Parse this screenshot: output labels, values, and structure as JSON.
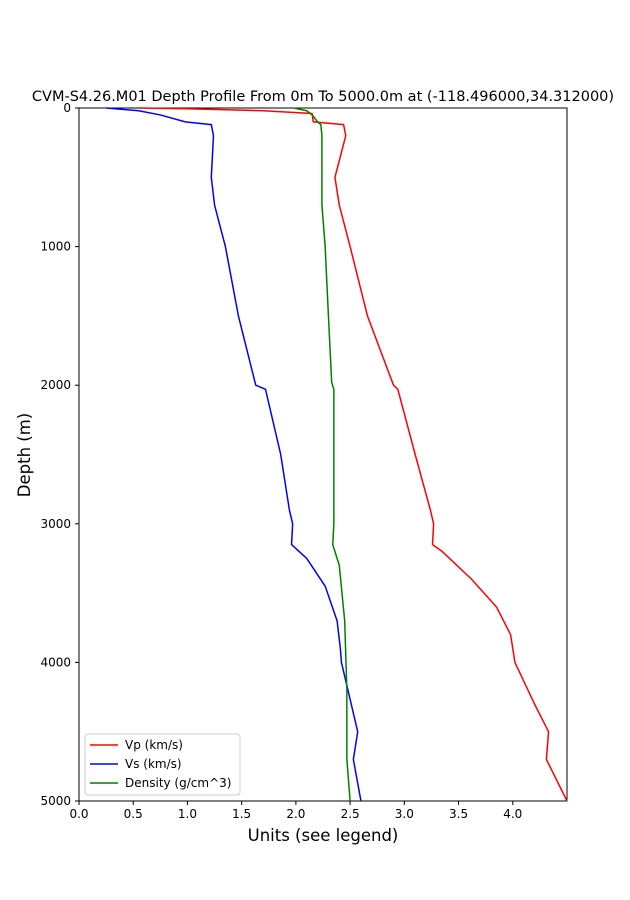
{
  "chart_data": {
    "type": "line",
    "title": "CVM-S4.26.M01 Depth Profile From 0m To 5000.0m at (-118.496000,34.312000)",
    "xlabel": "Units (see legend)",
    "ylabel": "Depth (m)",
    "xlim": [
      0.0,
      4.5
    ],
    "ylim": [
      0,
      5000
    ],
    "y_inverted": true,
    "grid": false,
    "legend_position": "lower-left",
    "x_ticks": [
      0.0,
      0.5,
      1.0,
      1.5,
      2.0,
      2.5,
      3.0,
      3.5,
      4.0
    ],
    "x_tick_labels": [
      "0.0",
      "0.5",
      "1.0",
      "1.5",
      "2.0",
      "2.5",
      "3.0",
      "3.5",
      "4.0"
    ],
    "y_ticks": [
      0,
      1000,
      2000,
      3000,
      4000,
      5000
    ],
    "y_tick_labels": [
      "0",
      "1000",
      "2000",
      "3000",
      "4000",
      "5000"
    ],
    "series": [
      {
        "name": "Vp (km/s)",
        "color": "#ff0000",
        "points": [
          [
            0.55,
            0
          ],
          [
            1.0,
            5
          ],
          [
            1.7,
            20
          ],
          [
            2.15,
            40
          ],
          [
            2.16,
            100
          ],
          [
            2.44,
            120
          ],
          [
            2.46,
            200
          ],
          [
            2.36,
            500
          ],
          [
            2.4,
            700
          ],
          [
            2.5,
            1000
          ],
          [
            2.66,
            1500
          ],
          [
            2.9,
            2000
          ],
          [
            2.94,
            2030
          ],
          [
            3.1,
            2500
          ],
          [
            3.24,
            2900
          ],
          [
            3.27,
            3000
          ],
          [
            3.26,
            3150
          ],
          [
            3.35,
            3200
          ],
          [
            3.62,
            3400
          ],
          [
            3.85,
            3600
          ],
          [
            3.98,
            3800
          ],
          [
            4.02,
            4000
          ],
          [
            4.2,
            4300
          ],
          [
            4.33,
            4500
          ],
          [
            4.31,
            4700
          ],
          [
            4.5,
            5000
          ]
        ]
      },
      {
        "name": "Vs (km/s)",
        "color": "#0000ff",
        "points": [
          [
            0.25,
            0
          ],
          [
            0.55,
            20
          ],
          [
            0.75,
            50
          ],
          [
            0.98,
            100
          ],
          [
            1.22,
            120
          ],
          [
            1.24,
            200
          ],
          [
            1.22,
            500
          ],
          [
            1.25,
            700
          ],
          [
            1.35,
            1000
          ],
          [
            1.47,
            1500
          ],
          [
            1.63,
            2000
          ],
          [
            1.72,
            2030
          ],
          [
            1.86,
            2500
          ],
          [
            1.94,
            2900
          ],
          [
            1.97,
            3000
          ],
          [
            1.96,
            3150
          ],
          [
            2.1,
            3250
          ],
          [
            2.27,
            3450
          ],
          [
            2.38,
            3700
          ],
          [
            2.41,
            3900
          ],
          [
            2.42,
            4000
          ],
          [
            2.57,
            4500
          ],
          [
            2.53,
            4700
          ],
          [
            2.6,
            5000
          ]
        ]
      },
      {
        "name": "Density (g/cm^3)",
        "color": "#008000",
        "points": [
          [
            1.98,
            0
          ],
          [
            2.1,
            20
          ],
          [
            2.15,
            50
          ],
          [
            2.2,
            100
          ],
          [
            2.23,
            120
          ],
          [
            2.24,
            200
          ],
          [
            2.24,
            500
          ],
          [
            2.24,
            700
          ],
          [
            2.27,
            1000
          ],
          [
            2.3,
            1500
          ],
          [
            2.33,
            1980
          ],
          [
            2.35,
            2030
          ],
          [
            2.35,
            2500
          ],
          [
            2.35,
            3000
          ],
          [
            2.34,
            3150
          ],
          [
            2.4,
            3300
          ],
          [
            2.45,
            3700
          ],
          [
            2.47,
            4200
          ],
          [
            2.47,
            4700
          ],
          [
            2.5,
            5000
          ]
        ]
      }
    ]
  }
}
